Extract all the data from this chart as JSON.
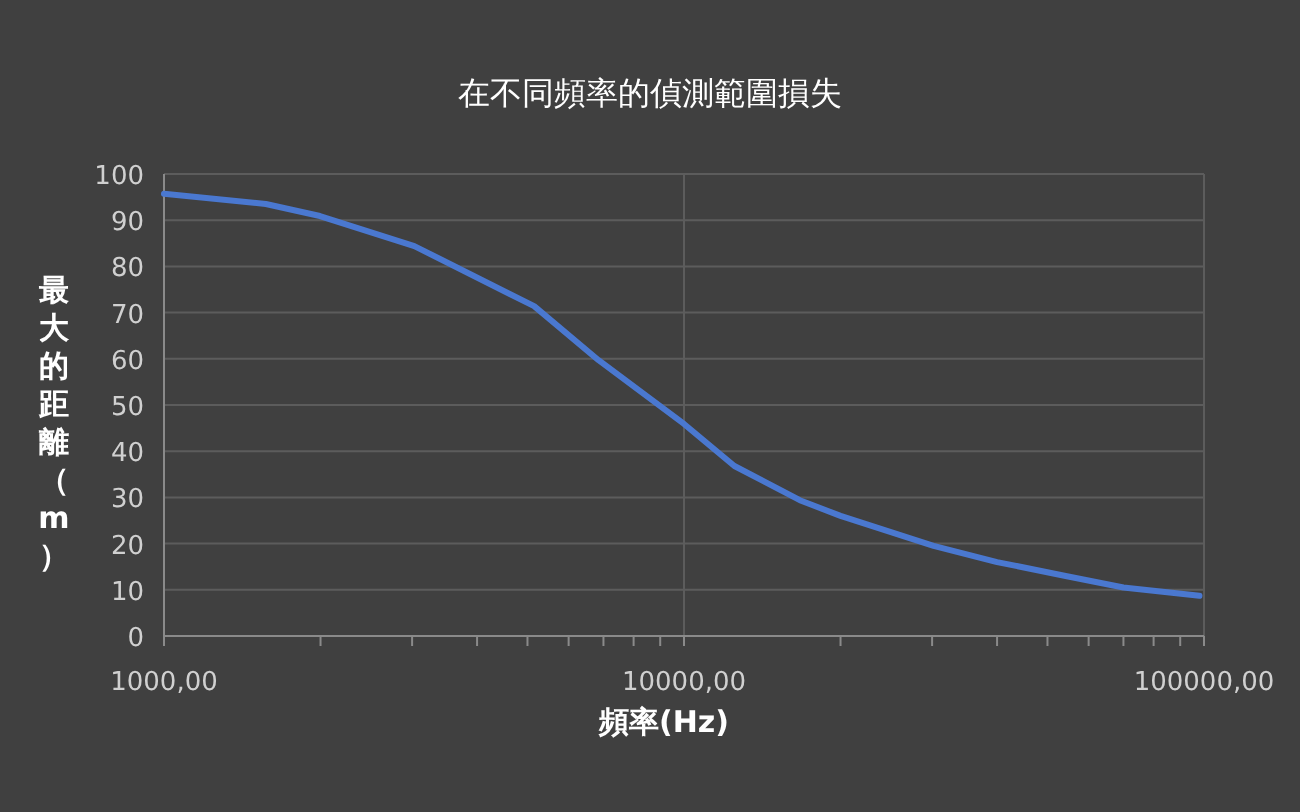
{
  "chart_data": {
    "type": "line",
    "title": "在不同頻率的偵測範圍損失",
    "xlabel": "頻率(Hz)",
    "ylabel": "最大的距離（m）",
    "x": [
      1000,
      1570,
      1995,
      3030,
      5150,
      6850,
      10000,
      12500,
      16700,
      20000,
      30200,
      40000,
      54200,
      70000,
      98000
    ],
    "series": [
      {
        "color": "#4a78d0",
        "values": [
          95.7,
          93.5,
          90.9,
          84.4,
          71.4,
          59.7,
          45.9,
          36.8,
          29.4,
          26,
          19.5,
          16,
          13,
          10.5,
          8.7
        ]
      }
    ],
    "log": "x",
    "xlim": [
      1000,
      100000
    ],
    "ylim": [
      0,
      100
    ],
    "xticks": [
      {
        "value": 1000,
        "label": "1000,00"
      },
      {
        "value": 2000,
        "label": null
      },
      {
        "value": 3000,
        "label": null
      },
      {
        "value": 4000,
        "label": null
      },
      {
        "value": 5000,
        "label": null
      },
      {
        "value": 6000,
        "label": null
      },
      {
        "value": 7000,
        "label": null
      },
      {
        "value": 8000,
        "label": null
      },
      {
        "value": 9000,
        "label": null
      },
      {
        "value": 10000,
        "label": "10000,00"
      },
      {
        "value": 20000,
        "label": null
      },
      {
        "value": 30000,
        "label": null
      },
      {
        "value": 40000,
        "label": null
      },
      {
        "value": 50000,
        "label": null
      },
      {
        "value": 60000,
        "label": null
      },
      {
        "value": 70000,
        "label": null
      },
      {
        "value": 80000,
        "label": null
      },
      {
        "value": 90000,
        "label": null
      },
      {
        "value": 100000,
        "label": "100000,00"
      }
    ],
    "yticks": [
      0,
      10,
      20,
      30,
      40,
      50,
      60,
      70,
      80,
      90,
      100
    ],
    "grid": true,
    "line_style": "solid",
    "marker": "none"
  }
}
